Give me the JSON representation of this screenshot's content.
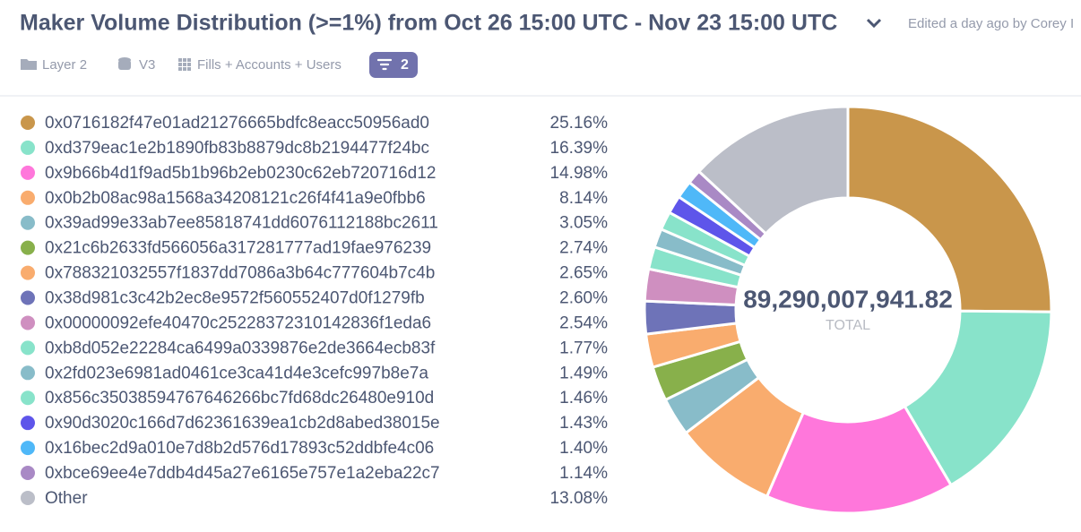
{
  "header": {
    "title": "Maker Volume Distribution (>=1%) from Oct 26 15:00 UTC - Nov 23 15:00 UTC",
    "edited": "Edited a day ago by Corey I",
    "toolbar": [
      "Layer 2",
      "V3",
      "Fills + Accounts + Users"
    ],
    "filter_count": "2"
  },
  "chart_data": {
    "type": "pie",
    "categories": [
      "0x0716182f47e01ad21276665bdfc8eacc50956ad0",
      "0xd379eac1e2b1890fb83b8879dc8b2194477f24bc",
      "0x9b66b4d1f9ad5b1b96b2eb0230c62eb720716d12",
      "0x0b2b08ac98a1568a34208121c26f4f41a9e0fbb6",
      "0x39ad99e33ab7ee85818741dd6076112188bc2611",
      "0x21c6b2633fd566056a317281777ad19fae976239",
      "0x788321032557f1837dd7086a3b64c777604b7c4b",
      "0x38d981c3c42b2ec8e9572f560552407d0f1279fb",
      "0x00000092efe40470c25228372310142836f1eda6",
      "0xb8d052e22284ca6499a0339876e2de3664ecb83f",
      "0x2fd023e6981ad0461ce3ca41d4e3cefc997b8e7a",
      "0x856c35038594767646266bc7fd68dc26480e910d",
      "0x90d3020c166d7d62361639ea1cb2d8abed38015e",
      "0x16bec2d9a010e7d8b2d576d17893c52ddbfe4c06",
      "0xbce69ee4e7ddb4d45a27e6165e757e1a2eba22c7",
      "Other"
    ],
    "values": [
      25.16,
      16.39,
      14.98,
      8.14,
      3.05,
      2.74,
      2.65,
      2.6,
      2.54,
      1.77,
      1.49,
      1.46,
      1.43,
      1.4,
      1.14,
      13.08
    ],
    "value_labels": [
      "25.16%",
      "16.39%",
      "14.98%",
      "8.14%",
      "3.05%",
      "2.74%",
      "2.65%",
      "2.60%",
      "2.54%",
      "1.77%",
      "1.49%",
      "1.46%",
      "1.43%",
      "1.40%",
      "1.14%",
      "13.08%"
    ],
    "colors": [
      "#c9964b",
      "#88e3ca",
      "#ff77db",
      "#f9ac6e",
      "#88bcc9",
      "#88b04b",
      "#f9ac6e",
      "#6e73b8",
      "#cf8fc0",
      "#88e3ca",
      "#88bcc9",
      "#88e3ca",
      "#5e55ea",
      "#4fb8f8",
      "#a989c5",
      "#bbbec8"
    ],
    "total": "89,290,007,941.82",
    "total_caption": "TOTAL"
  }
}
